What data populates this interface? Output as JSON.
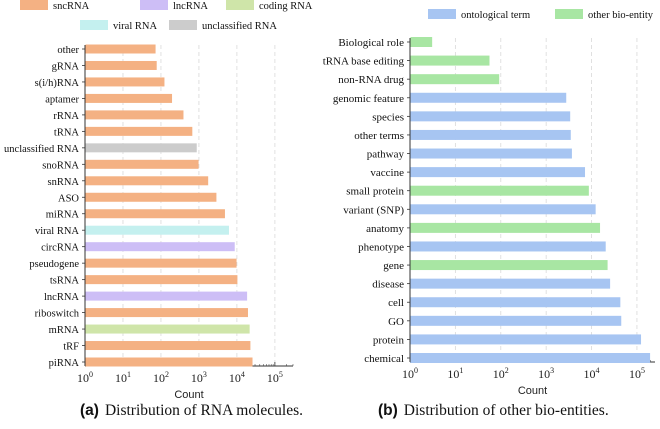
{
  "chart_data": [
    {
      "type": "bar",
      "orientation": "horizontal",
      "xscale": "log",
      "xlim": [
        1,
        300000
      ],
      "xlabel": "Count",
      "xticks": [
        "10^0",
        "10^1",
        "10^2",
        "10^3",
        "10^4",
        "10^5"
      ],
      "grid": true,
      "legend_position": "top",
      "legend": [
        {
          "key": "sncRNA",
          "label": "sncRNA",
          "color": "#f4b183"
        },
        {
          "key": "lncRNA",
          "label": "lncRNA",
          "color": "#cdbef6"
        },
        {
          "key": "coding",
          "label": "coding RNA",
          "color": "#cfe5a9"
        },
        {
          "key": "viral",
          "label": "viral RNA",
          "color": "#c4f0ef"
        },
        {
          "key": "unclassified",
          "label": "unclassified RNA",
          "color": "#cccccc"
        }
      ],
      "categories": [
        "other",
        "gRNA",
        "s(i/h)RNA",
        "aptamer",
        "rRNA",
        "tRNA",
        "unclassified RNA",
        "snoRNA",
        "snRNA",
        "ASO",
        "miRNA",
        "viral RNA",
        "circRNA",
        "pseudogene",
        "tsRNA",
        "lncRNA",
        "riboswitch",
        "mRNA",
        "tRF",
        "piRNA"
      ],
      "groups": [
        "sncRNA",
        "sncRNA",
        "sncRNA",
        "sncRNA",
        "sncRNA",
        "sncRNA",
        "unclassified",
        "sncRNA",
        "sncRNA",
        "sncRNA",
        "sncRNA",
        "viral",
        "lncRNA",
        "sncRNA",
        "sncRNA",
        "lncRNA",
        "sncRNA",
        "coding",
        "sncRNA",
        "sncRNA"
      ],
      "values": [
        70,
        75,
        120,
        190,
        380,
        650,
        850,
        950,
        1700,
        2800,
        4700,
        6000,
        8500,
        9500,
        10000,
        18000,
        19000,
        21000,
        22000,
        25000
      ]
    },
    {
      "type": "bar",
      "orientation": "horizontal",
      "xscale": "log",
      "xlim": [
        1,
        250000
      ],
      "xlabel": "Count",
      "xticks": [
        "10^0",
        "10^1",
        "10^2",
        "10^3",
        "10^4",
        "10^5"
      ],
      "grid": true,
      "legend_position": "top",
      "legend": [
        {
          "key": "ontological",
          "label": "ontological term",
          "color": "#a7c5f2"
        },
        {
          "key": "other",
          "label": "other bio-entity",
          "color": "#a8e6a3"
        }
      ],
      "categories": [
        "Biological role",
        "tRNA base editing",
        "non-RNA drug",
        "genomic feature",
        "species",
        "other terms",
        "pathway",
        "vaccine",
        "small protein",
        "variant (SNP)",
        "anatomy",
        "phenotype",
        "gene",
        "disease",
        "cell",
        "GO",
        "protein",
        "chemical"
      ],
      "groups": [
        "other",
        "other",
        "other",
        "ontological",
        "ontological",
        "ontological",
        "ontological",
        "ontological",
        "other",
        "ontological",
        "other",
        "ontological",
        "other",
        "ontological",
        "ontological",
        "ontological",
        "ontological",
        "ontological"
      ],
      "values": [
        3,
        55,
        90,
        2700,
        3300,
        3400,
        3600,
        7000,
        8500,
        12000,
        15000,
        20000,
        22000,
        25000,
        42000,
        44000,
        120000,
        190000
      ]
    }
  ],
  "captions": [
    {
      "label": "(a)",
      "text": "Distribution of RNA molecules."
    },
    {
      "label": "(b)",
      "text": "Distribution of other bio-entities."
    }
  ]
}
